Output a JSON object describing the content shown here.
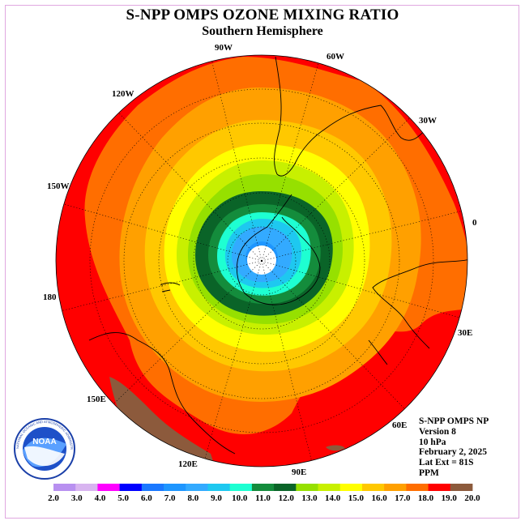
{
  "title": "S-NPP OMPS OZONE MIXING RATIO",
  "subtitle": "Southern Hemisphere",
  "longitude_labels": [
    "90W",
    "60W",
    "30W",
    "0",
    "30E",
    "60E",
    "90E",
    "120E",
    "150E",
    "180",
    "150W",
    "120W"
  ],
  "info": {
    "instrument": "S-NPP OMPS NP",
    "version": "Version 8",
    "level": "10 hPa",
    "date": "February 2, 2025",
    "lat_ext": "Lat Ext = 81S",
    "units": "PPM"
  },
  "logo": {
    "name": "NOAA",
    "text": "NOAA",
    "ring_text": "NATIONAL OCEANIC AND ATMOSPHERIC ADMINISTRATION · U.S. DEPARTMENT OF COMMERCE"
  },
  "colorbar": {
    "labels": [
      "2.0",
      "3.0",
      "4.0",
      "5.0",
      "6.0",
      "7.0",
      "8.0",
      "9.0",
      "10.0",
      "11.0",
      "12.0",
      "13.0",
      "14.0",
      "15.0",
      "16.0",
      "17.0",
      "18.0",
      "19.0",
      "20.0"
    ],
    "colors": [
      "#b890f0",
      "#d8b4f0",
      "#ff00ff",
      "#0000ff",
      "#1a78ff",
      "#1e96ff",
      "#33aaff",
      "#1ec8f0",
      "#1effd2",
      "#148c3c",
      "#0a6428",
      "#96e000",
      "#c8f000",
      "#ffff00",
      "#ffc800",
      "#ffa000",
      "#ff6e00",
      "#ff0000",
      "#8c5a3c"
    ]
  },
  "map_colors": {
    "level_19": "#ff0000",
    "level_18": "#ff6e00",
    "level_17": "#ffa000",
    "level_16": "#ffc800",
    "level_15": "#ffff00",
    "level_14": "#c8f000",
    "level_13": "#96e000",
    "level_12": "#0a6428",
    "level_11": "#148c3c",
    "level_10": "#1effd2",
    "level_9": "#1ec8f0",
    "level_8": "#33aaff",
    "level_7": "#1e96ff",
    "level_20": "#8c5a3c"
  }
}
